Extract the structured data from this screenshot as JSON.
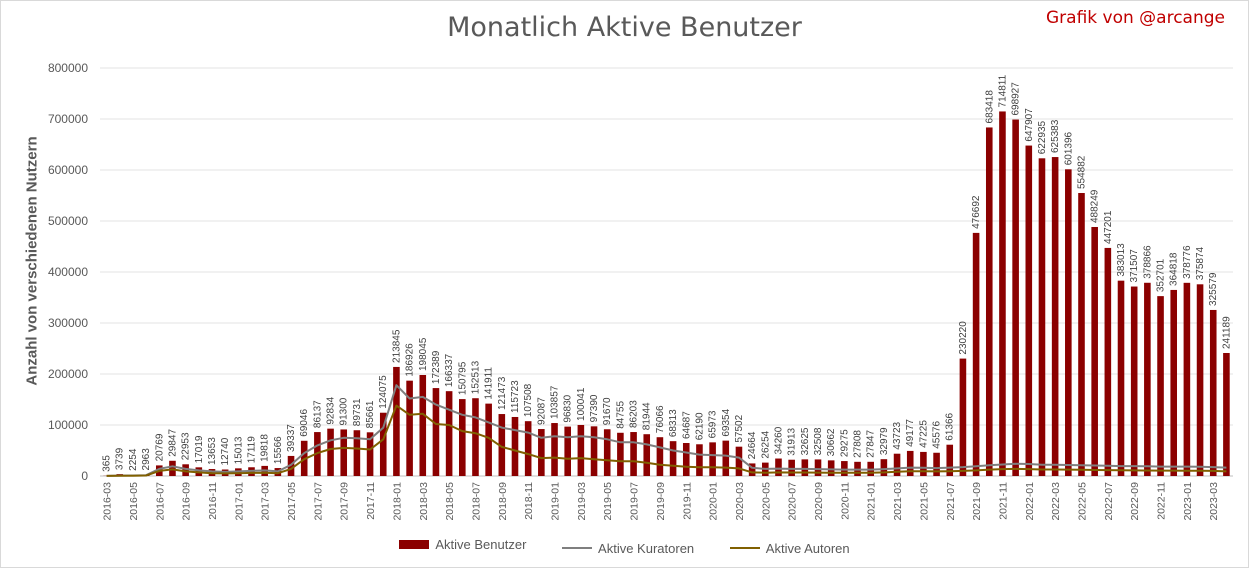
{
  "title": "Monatlich Aktive Benutzer",
  "credit": "Grafik von @arcange",
  "chart_data": {
    "type": "bar",
    "title": "Monatlich Aktive Benutzer",
    "ylabel": "Anzahl von verschiedenen Nutzern",
    "xlabel": "",
    "ylim": [
      0,
      800000
    ],
    "yticks": [
      "0",
      "100000",
      "200000",
      "300000",
      "400000",
      "500000",
      "600000",
      "700000",
      "800000"
    ],
    "grid": true,
    "legend_position": "bottom",
    "categories": [
      "2016-03",
      "2016-04",
      "2016-05",
      "2016-06",
      "2016-07",
      "2016-08",
      "2016-09",
      "2016-10",
      "2016-11",
      "2016-12",
      "2017-01",
      "2017-02",
      "2017-03",
      "2017-04",
      "2017-05",
      "2017-06",
      "2017-07",
      "2017-08",
      "2017-09",
      "2017-10",
      "2017-11",
      "2017-12",
      "2018-01",
      "2018-02",
      "2018-03",
      "2018-04",
      "2018-05",
      "2018-06",
      "2018-07",
      "2018-08",
      "2018-09",
      "2018-10",
      "2018-11",
      "2018-12",
      "2019-01",
      "2019-02",
      "2019-03",
      "2019-04",
      "2019-05",
      "2019-06",
      "2019-07",
      "2019-08",
      "2019-09",
      "2019-10",
      "2019-11",
      "2019-12",
      "2020-01",
      "2020-02",
      "2020-03",
      "2020-04",
      "2020-05",
      "2020-06",
      "2020-07",
      "2020-08",
      "2020-09",
      "2020-10",
      "2020-11",
      "2020-12",
      "2021-01",
      "2021-02",
      "2021-03",
      "2021-04",
      "2021-05",
      "2021-06",
      "2021-07",
      "2021-08",
      "2021-09",
      "2021-10",
      "2021-11",
      "2021-12",
      "2022-01",
      "2022-02",
      "2022-03",
      "2022-04",
      "2022-05",
      "2022-06",
      "2022-07",
      "2022-08",
      "2022-09",
      "2022-10",
      "2022-11",
      "2022-12",
      "2023-01",
      "2023-02",
      "2023-03",
      "2023-04"
    ],
    "x_tick_labels": [
      "2016-03",
      "2016-05",
      "2016-07",
      "2016-09",
      "2016-11",
      "2017-01",
      "2017-03",
      "2017-05",
      "2017-07",
      "2017-09",
      "2017-11",
      "2018-01",
      "2018-03",
      "2018-05",
      "2018-07",
      "2018-09",
      "2018-11",
      "2019-01",
      "2019-03",
      "2019-05",
      "2019-07",
      "2019-09",
      "2019-11",
      "2020-01",
      "2020-03",
      "2020-05",
      "2020-07",
      "2020-09",
      "2020-11",
      "2021-01",
      "2021-03",
      "2021-05",
      "2021-07",
      "2021-09",
      "2021-11",
      "2022-01",
      "2022-03",
      "2022-05",
      "2022-07",
      "2022-09",
      "2022-11",
      "2023-01",
      "2023-03"
    ],
    "series": [
      {
        "name": "Aktive Benutzer",
        "kind": "bar",
        "color": "#8b0000",
        "values": [
          365,
          3739,
          2254,
          2963,
          20769,
          29847,
          22953,
          17019,
          13653,
          12740,
          15013,
          17119,
          19818,
          15566,
          39337,
          69046,
          86137,
          92834,
          91300,
          89731,
          85661,
          124075,
          213845,
          186926,
          198045,
          172389,
          166337,
          150795,
          152513,
          141911,
          121473,
          115723,
          107508,
          92087,
          103857,
          96830,
          100041,
          97390,
          91670,
          84755,
          86203,
          81944,
          76066,
          68313,
          64687,
          62190,
          65973,
          69354,
          57502,
          24664,
          26254,
          34260,
          31913,
          32625,
          32508,
          30662,
          29275,
          27808,
          27847,
          32979,
          43723,
          49177,
          47225,
          45576,
          61366,
          230220,
          476692,
          683418,
          714811,
          698927,
          647907,
          622935,
          625383,
          601396,
          554882,
          488249,
          447201,
          383013,
          371507,
          378866,
          352701,
          364818,
          378776,
          375874,
          325579,
          241189
        ]
      },
      {
        "name": "Aktive Kuratoren",
        "kind": "line",
        "color": "#7f7f7f",
        "values": [
          200,
          700,
          1000,
          1500,
          14000,
          19000,
          14000,
          11000,
          9000,
          8000,
          9000,
          10000,
          11000,
          9000,
          22000,
          45000,
          60000,
          70000,
          75000,
          74000,
          72000,
          95000,
          178000,
          152000,
          155000,
          140000,
          130000,
          120000,
          115000,
          105000,
          95000,
          90000,
          85000,
          75000,
          78000,
          76000,
          78000,
          76000,
          72000,
          66000,
          66000,
          62000,
          56000,
          50000,
          46000,
          42000,
          41000,
          40000,
          36000,
          16000,
          14000,
          14500,
          14000,
          14000,
          13500,
          13000,
          12500,
          12500,
          12500,
          13500,
          15000,
          16500,
          16000,
          15500,
          16500,
          17500,
          19000,
          21000,
          22500,
          24000,
          23500,
          22000,
          22000,
          21500,
          21000,
          20500,
          20000,
          19500,
          19500,
          19000,
          18500,
          18500,
          18500,
          18000,
          17500,
          16500
        ]
      },
      {
        "name": "Aktive Autoren",
        "kind": "line",
        "color": "#806000",
        "values": [
          100,
          400,
          600,
          900,
          10000,
          13000,
          9000,
          7000,
          5500,
          5000,
          5500,
          6000,
          6500,
          5500,
          14000,
          33000,
          45000,
          53000,
          55000,
          54000,
          52000,
          72000,
          138000,
          120000,
          122000,
          102000,
          100000,
          88000,
          84000,
          75000,
          57000,
          50000,
          43000,
          35000,
          36000,
          34000,
          35000,
          33000,
          31000,
          29000,
          29000,
          26000,
          22000,
          20000,
          18000,
          17000,
          17000,
          16500,
          15000,
          7000,
          6500,
          7000,
          6800,
          6800,
          6600,
          6400,
          6200,
          6200,
          6300,
          7000,
          8500,
          9500,
          9200,
          9000,
          9500,
          10000,
          11000,
          12500,
          13500,
          14000,
          13500,
          12800,
          12800,
          12500,
          12200,
          11800,
          11500,
          11200,
          11000,
          10800,
          10500,
          10500,
          10400,
          10200,
          10000,
          9000
        ]
      }
    ]
  }
}
